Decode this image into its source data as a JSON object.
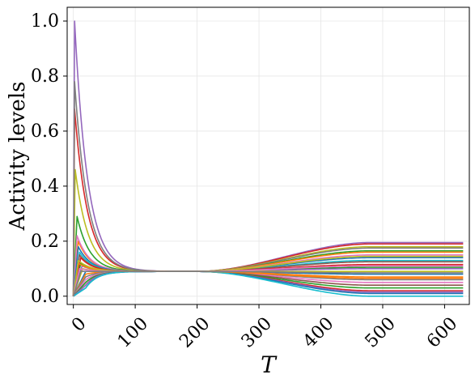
{
  "chart_data": {
    "type": "line",
    "title": "",
    "xlabel": "T",
    "ylabel": "Activity levels",
    "xlim": [
      -10,
      640
    ],
    "ylim": [
      -0.03,
      1.05
    ],
    "xticks": [
      0,
      100,
      200,
      300,
      400,
      500,
      600
    ],
    "xtick_labels": [
      "0",
      "100",
      "200",
      "300",
      "400",
      "500",
      "600"
    ],
    "yticks": [
      0.0,
      0.2,
      0.4,
      0.6,
      0.8,
      1.0
    ],
    "ytick_labels": [
      "0.0",
      "0.2",
      "0.4",
      "0.6",
      "0.8",
      "1.0"
    ],
    "x_tick_rotation_deg": -45,
    "grid": true,
    "legend": "none",
    "x_range": [
      0,
      630
    ],
    "convergence": {
      "x": 150,
      "y": 0.09
    },
    "colors": [
      "#1f77b4",
      "#ff7f0e",
      "#2ca02c",
      "#d62728",
      "#9467bd",
      "#8c564b",
      "#e377c2",
      "#7f7f7f",
      "#bcbd22",
      "#17becf"
    ],
    "series": [
      {
        "color": "#9467bd",
        "start": 0.0,
        "peak": 1.0,
        "peak_x": 2,
        "final": 0.195
      },
      {
        "color": "#d62728",
        "start": 0.0,
        "peak": 0.68,
        "peak_x": 2,
        "final": 0.19
      },
      {
        "color": "#bcbd22",
        "start": 0.0,
        "peak": 0.46,
        "peak_x": 3,
        "final": 0.18
      },
      {
        "color": "#7f7f7f",
        "start": 0.0,
        "peak": 0.78,
        "peak_x": 2,
        "final": 0.175
      },
      {
        "color": "#2ca02c",
        "start": 0.0,
        "peak": 0.29,
        "peak_x": 6,
        "final": 0.165
      },
      {
        "color": "#ff7f0e",
        "start": 0.0,
        "peak": 0.2,
        "peak_x": 8,
        "final": 0.16
      },
      {
        "color": "#e377c2",
        "start": 0.0,
        "peak": 0.22,
        "peak_x": 6,
        "final": 0.15
      },
      {
        "color": "#1f77b4",
        "start": 0.0,
        "peak": 0.18,
        "peak_x": 8,
        "final": 0.14
      },
      {
        "color": "#17becf",
        "start": 0.0,
        "peak": 0.16,
        "peak_x": 10,
        "final": 0.13
      },
      {
        "color": "#8c564b",
        "start": 0.0,
        "peak": 0.15,
        "peak_x": 10,
        "final": 0.125
      },
      {
        "color": "#d62728",
        "start": 0.0,
        "peak": 0.14,
        "peak_x": 12,
        "final": 0.115
      },
      {
        "color": "#2ca02c",
        "start": 0.0,
        "peak": 0.12,
        "peak_x": 12,
        "final": 0.105
      },
      {
        "color": "#9467bd",
        "start": 0.0,
        "peak": 0.11,
        "peak_x": 14,
        "final": 0.1
      },
      {
        "color": "#bcbd22",
        "start": 0.0,
        "peak": 0.1,
        "peak_x": 15,
        "final": 0.09
      },
      {
        "color": "#1f77b4",
        "start": 0.0,
        "peak": 0.09,
        "peak_x": 20,
        "final": 0.08
      },
      {
        "color": "#ff7f0e",
        "start": 0.0,
        "peak": 0.08,
        "peak_x": 20,
        "final": 0.07
      },
      {
        "color": "#7f7f7f",
        "start": 0.0,
        "peak": 0.07,
        "peak_x": 20,
        "final": 0.06
      },
      {
        "color": "#e377c2",
        "start": 0.0,
        "peak": 0.06,
        "peak_x": 20,
        "final": 0.05
      },
      {
        "color": "#8c564b",
        "start": 0.0,
        "peak": 0.05,
        "peak_x": 20,
        "final": 0.04
      },
      {
        "color": "#2ca02c",
        "start": 0.0,
        "peak": 0.05,
        "peak_x": 20,
        "final": 0.03
      },
      {
        "color": "#d62728",
        "start": 0.0,
        "peak": 0.04,
        "peak_x": 20,
        "final": 0.02
      },
      {
        "color": "#9467bd",
        "start": 0.0,
        "peak": 0.04,
        "peak_x": 20,
        "final": 0.015
      },
      {
        "color": "#1f77b4",
        "start": 0.0,
        "peak": 0.03,
        "peak_x": 20,
        "final": 0.01
      },
      {
        "color": "#17becf",
        "start": 0.0,
        "peak": 0.03,
        "peak_x": 20,
        "final": 0.0
      },
      {
        "color": "#ff7f0e",
        "start": 0.0,
        "peak": 0.12,
        "peak_x": 8,
        "final": 0.065
      },
      {
        "color": "#bcbd22",
        "start": 0.0,
        "peak": 0.13,
        "peak_x": 8,
        "final": 0.145
      },
      {
        "color": "#e377c2",
        "start": 0.0,
        "peak": 0.1,
        "peak_x": 10,
        "final": 0.11
      },
      {
        "color": "#7f7f7f",
        "start": 0.0,
        "peak": 0.09,
        "peak_x": 12,
        "final": 0.085
      }
    ]
  }
}
